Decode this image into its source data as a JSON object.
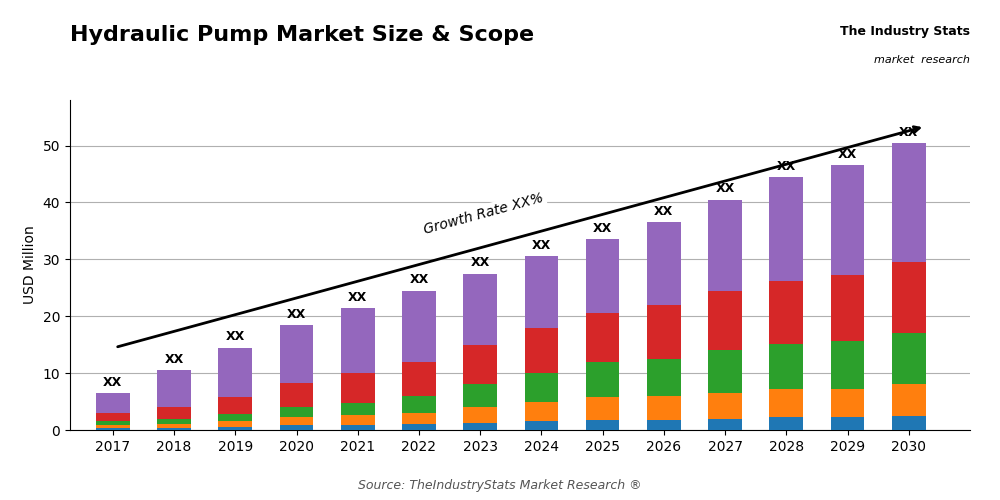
{
  "chart_data": {
    "type": "bar",
    "stacked": true,
    "grid": true,
    "title": "Hydraulic Pump Market Size & Scope",
    "y_label": "USD Million",
    "x": [
      2017,
      2018,
      2019,
      2020,
      2021,
      2022,
      2023,
      2024,
      2025,
      2026,
      2027,
      2028,
      2029,
      2030
    ],
    "series": [
      {
        "values": [
          0.3,
          0.4,
          0.5,
          0.8,
          0.8,
          1.0,
          1.2,
          1.5,
          1.8,
          1.8,
          2.0,
          2.2,
          2.2,
          2.5
        ]
      },
      {
        "values": [
          0.5,
          0.7,
          1.0,
          1.5,
          1.8,
          2.0,
          2.8,
          3.5,
          4.0,
          4.2,
          4.5,
          5.0,
          5.0,
          5.5
        ]
      },
      {
        "values": [
          0.7,
          0.9,
          1.3,
          1.8,
          2.2,
          3.0,
          4.0,
          5.0,
          6.2,
          6.5,
          7.5,
          8.0,
          8.5,
          9.0
        ]
      },
      {
        "values": [
          1.5,
          2.0,
          3.0,
          4.2,
          5.2,
          6.0,
          7.0,
          8.0,
          8.5,
          9.5,
          10.5,
          11.0,
          11.5,
          12.5
        ]
      },
      {
        "values": [
          3.5,
          6.5,
          8.7,
          10.2,
          11.5,
          12.5,
          12.5,
          12.5,
          13.0,
          14.5,
          16.0,
          18.3,
          19.3,
          21.0
        ]
      }
    ],
    "xlim": [
      2016.3,
      2031.0
    ],
    "xticks": [
      2017,
      2018,
      2019,
      2020,
      2021,
      2022,
      2023,
      2024,
      2025,
      2026,
      2027,
      2028,
      2029,
      2030
    ],
    "ylim": [
      0,
      58
    ],
    "yticks": [
      0,
      10,
      20,
      30,
      40,
      50
    ],
    "annotations": [
      {
        "text": "Growth Rate XX%"
      },
      {
        "text": "Source: TheIndustryStats Market Research ®"
      },
      {
        "text": "The Industry Stats"
      },
      {
        "text": "market  research"
      },
      {
        "text": "XX",
        "x": 2017
      },
      {
        "text": "XX",
        "x": 2018
      },
      {
        "text": "XX",
        "x": 2019
      },
      {
        "text": "XX",
        "x": 2020
      },
      {
        "text": "XX",
        "x": 2021
      },
      {
        "text": "XX",
        "x": 2022
      },
      {
        "text": "XX",
        "x": 2023
      },
      {
        "text": "XX",
        "x": 2024
      },
      {
        "text": "XX",
        "x": 2025
      },
      {
        "text": "XX",
        "x": 2026
      },
      {
        "text": "XX",
        "x": 2027
      },
      {
        "text": "XX",
        "x": 2028
      },
      {
        "text": "XX",
        "x": 2029
      },
      {
        "text": "XX",
        "x": 2030
      }
    ]
  }
}
